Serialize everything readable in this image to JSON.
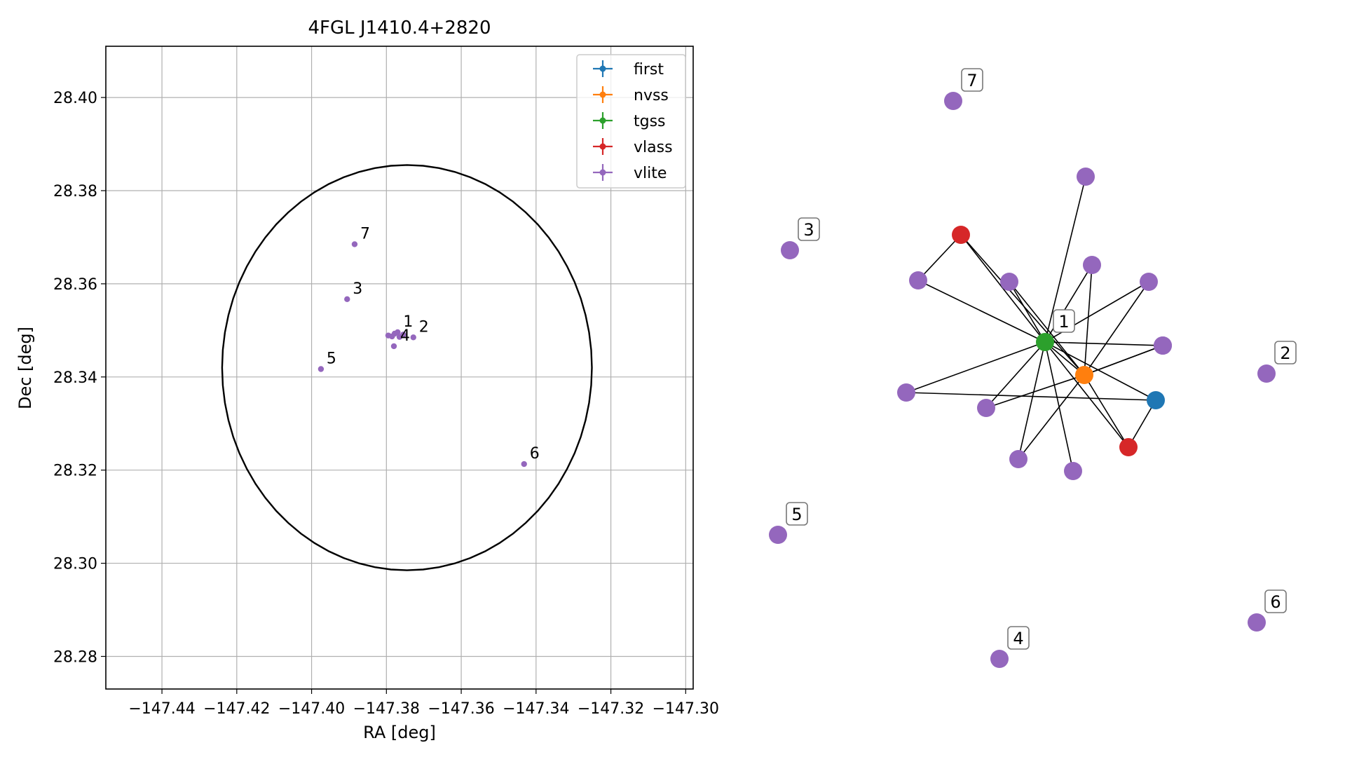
{
  "chart_data": [
    {
      "type": "scatter",
      "title": "4FGL J1410.4+2820",
      "xlabel": "RA [deg]",
      "ylabel": "Dec [deg]",
      "xlim": [
        -147.455,
        -147.298
      ],
      "ylim": [
        28.273,
        28.411
      ],
      "grid": true,
      "legend_position": "top-right",
      "xticks": [
        -147.44,
        -147.42,
        -147.4,
        -147.38,
        -147.36,
        -147.34,
        -147.32,
        -147.3
      ],
      "xtick_labels": [
        "−147.44",
        "−147.42",
        "−147.40",
        "−147.38",
        "−147.36",
        "−147.34",
        "−147.32",
        "−147.30"
      ],
      "yticks": [
        28.28,
        28.3,
        28.32,
        28.34,
        28.36,
        28.38,
        28.4
      ],
      "ytick_labels": [
        "28.28",
        "28.30",
        "28.32",
        "28.34",
        "28.36",
        "28.38",
        "28.40"
      ],
      "circle": {
        "center": [
          -147.3745,
          28.342
        ],
        "radius_dec": 0.0435,
        "color": "#000000"
      },
      "series": [
        {
          "name": "first",
          "color": "#1f77b4",
          "points": []
        },
        {
          "name": "nvss",
          "color": "#ff7f0e",
          "points": []
        },
        {
          "name": "tgss",
          "color": "#2ca02c",
          "points": []
        },
        {
          "name": "vlass",
          "color": "#d62728",
          "points": []
        },
        {
          "name": "vlite",
          "color": "#9467bd",
          "points": [
            [
              -147.3795,
              28.3489
            ],
            [
              -147.3785,
              28.3487
            ],
            [
              -147.3778,
              28.3493
            ],
            [
              -147.377,
              28.3496
            ],
            [
              -147.3765,
              28.3486
            ],
            [
              -147.3755,
              28.3491
            ],
            [
              -147.378,
              28.3466
            ],
            [
              -147.3728,
              28.3485
            ],
            [
              -147.3885,
              28.3685
            ],
            [
              -147.3905,
              28.3567
            ],
            [
              -147.3975,
              28.3417
            ],
            [
              -147.3432,
              28.3213
            ]
          ]
        }
      ],
      "annotations": [
        {
          "text": "1",
          "x": -147.377,
          "y": 28.3496
        },
        {
          "text": "2",
          "x": -147.3728,
          "y": 28.3485
        },
        {
          "text": "3",
          "x": -147.3905,
          "y": 28.3567
        },
        {
          "text": "4",
          "x": -147.3778,
          "y": 28.3466
        },
        {
          "text": "5",
          "x": -147.3975,
          "y": 28.3417
        },
        {
          "text": "6",
          "x": -147.3432,
          "y": 28.3213
        },
        {
          "text": "7",
          "x": -147.3885,
          "y": 28.3685
        }
      ]
    },
    {
      "type": "network",
      "node_colors": {
        "first": "#1f77b4",
        "nvss": "#ff7f0e",
        "tgss": "#2ca02c",
        "vlass": "#d62728",
        "vlite": "#9467bd"
      },
      "nodes": [
        {
          "id": "tgss1",
          "survey": "tgss",
          "label": "1"
        },
        {
          "id": "nvss1",
          "survey": "nvss",
          "label": ""
        },
        {
          "id": "first1",
          "survey": "first",
          "label": ""
        },
        {
          "id": "vlass1",
          "survey": "vlass",
          "label": ""
        },
        {
          "id": "vlass2",
          "survey": "vlass",
          "label": ""
        },
        {
          "id": "v_a",
          "survey": "vlite",
          "label": ""
        },
        {
          "id": "v_b",
          "survey": "vlite",
          "label": ""
        },
        {
          "id": "v_c",
          "survey": "vlite",
          "label": ""
        },
        {
          "id": "v_d",
          "survey": "vlite",
          "label": ""
        },
        {
          "id": "v_e",
          "survey": "vlite",
          "label": ""
        },
        {
          "id": "v_f",
          "survey": "vlite",
          "label": ""
        },
        {
          "id": "v_g",
          "survey": "vlite",
          "label": ""
        },
        {
          "id": "v_h",
          "survey": "vlite",
          "label": ""
        },
        {
          "id": "v_i",
          "survey": "vlite",
          "label": ""
        },
        {
          "id": "v_j",
          "survey": "vlite",
          "label": ""
        },
        {
          "id": "v_k",
          "survey": "vlite",
          "label": ""
        },
        {
          "id": "v_2",
          "survey": "vlite",
          "label": "2"
        },
        {
          "id": "v_3",
          "survey": "vlite",
          "label": "3"
        },
        {
          "id": "v_4",
          "survey": "vlite",
          "label": "4"
        },
        {
          "id": "v_5",
          "survey": "vlite",
          "label": "5"
        },
        {
          "id": "v_6",
          "survey": "vlite",
          "label": "6"
        },
        {
          "id": "v_7",
          "survey": "vlite",
          "label": "7"
        }
      ],
      "edges": [
        [
          "tgss1",
          "vlass1"
        ],
        [
          "tgss1",
          "v_a"
        ],
        [
          "tgss1",
          "v_b"
        ],
        [
          "tgss1",
          "v_c"
        ],
        [
          "tgss1",
          "v_d"
        ],
        [
          "tgss1",
          "v_e"
        ],
        [
          "tgss1",
          "v_f"
        ],
        [
          "tgss1",
          "v_g"
        ],
        [
          "tgss1",
          "v_h"
        ],
        [
          "tgss1",
          "v_i"
        ],
        [
          "tgss1",
          "v_j"
        ],
        [
          "tgss1",
          "nvss1"
        ],
        [
          "tgss1",
          "first1"
        ],
        [
          "tgss1",
          "vlass2"
        ],
        [
          "nvss1",
          "vlass1"
        ],
        [
          "nvss1",
          "v_b"
        ],
        [
          "nvss1",
          "v_c"
        ],
        [
          "nvss1",
          "v_d"
        ],
        [
          "nvss1",
          "v_e"
        ],
        [
          "nvss1",
          "v_g"
        ],
        [
          "nvss1",
          "v_h"
        ],
        [
          "nvss1",
          "v_k"
        ],
        [
          "nvss1",
          "vlass2"
        ],
        [
          "vlass1",
          "v_a"
        ],
        [
          "first1",
          "v_f"
        ],
        [
          "first1",
          "vlass2"
        ]
      ]
    }
  ]
}
